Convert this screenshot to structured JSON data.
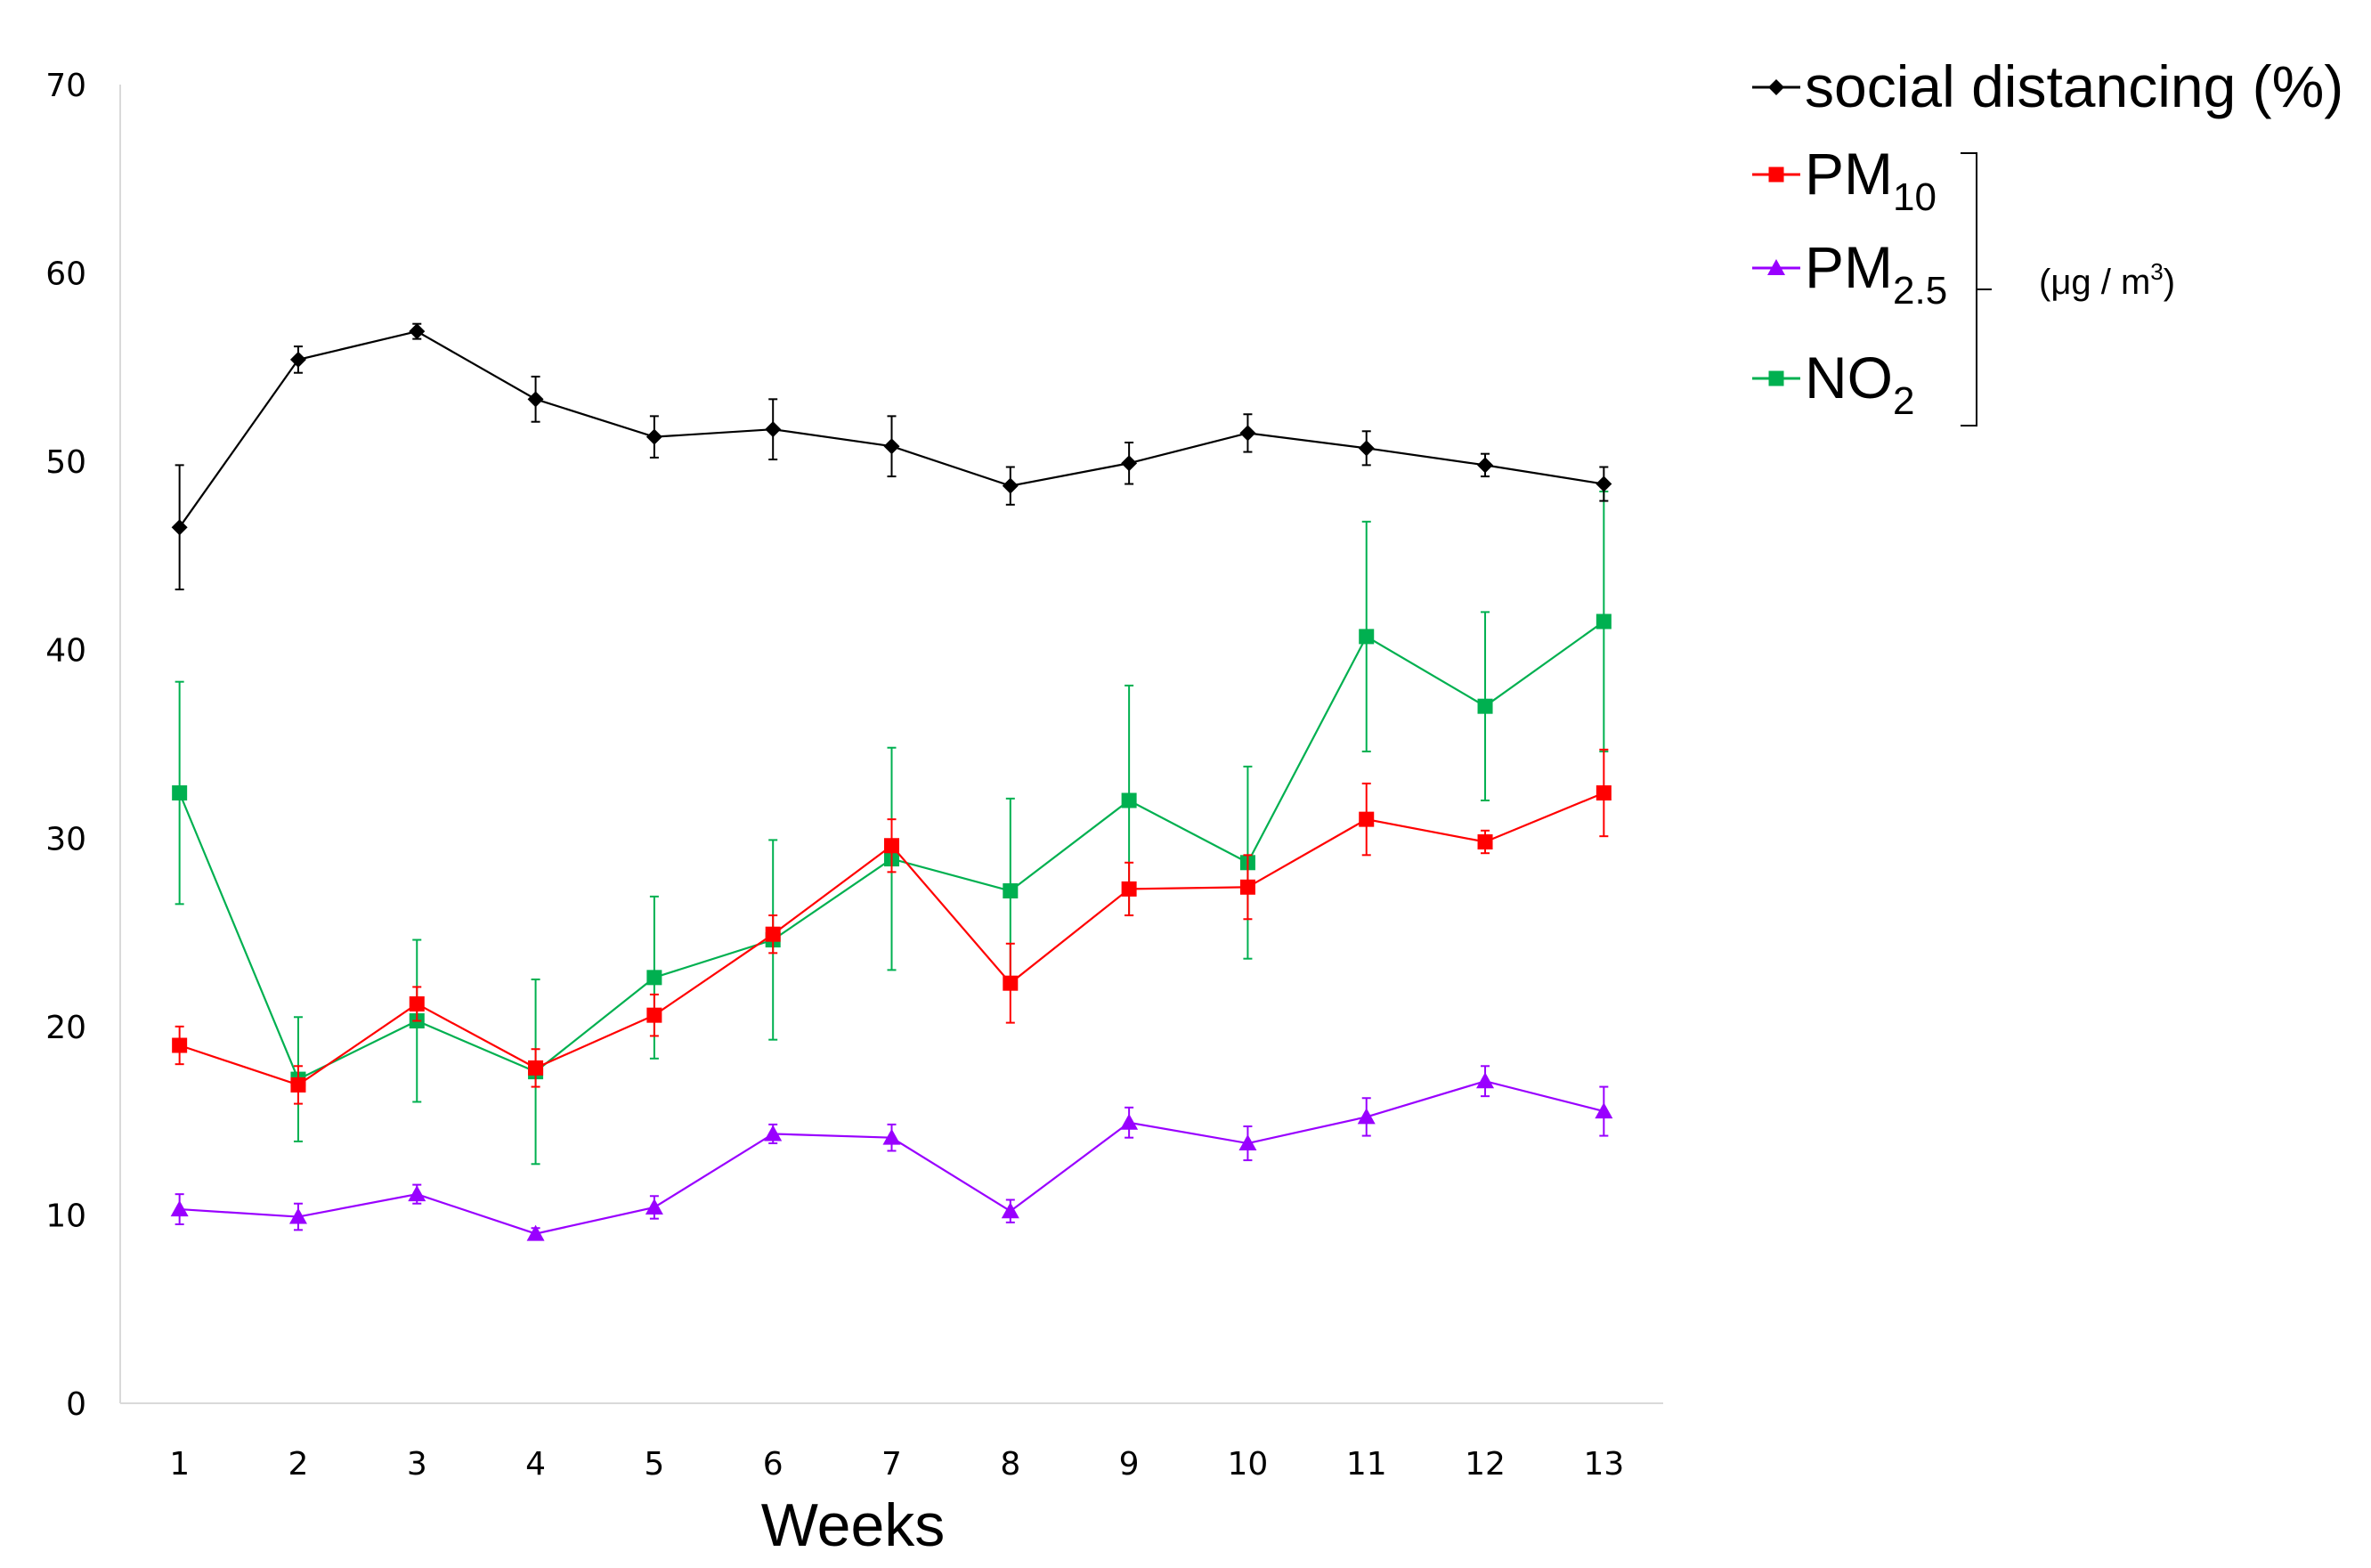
{
  "chart_data": {
    "type": "line",
    "title": "",
    "xlabel": "Weeks",
    "ylabel": "",
    "ylim": [
      0,
      70
    ],
    "yticks": [
      0,
      10,
      20,
      30,
      40,
      50,
      60,
      70
    ],
    "x": [
      1,
      2,
      3,
      4,
      5,
      6,
      7,
      8,
      9,
      10,
      11,
      12,
      13
    ],
    "xtick_labels": [
      "1",
      "2",
      "3",
      "4",
      "5",
      "6",
      "7",
      "8",
      "9",
      "10",
      "11",
      "12",
      "13"
    ],
    "grid": false,
    "legend_position": "top-right",
    "units_label": {
      "prefix": "(μg / m",
      "sup": "3",
      "suffix": ")"
    },
    "series": [
      {
        "key": "social",
        "label": "social distancing (%)",
        "label_main": "social distancing (%)",
        "label_sub": "",
        "color": "#000000",
        "marker": "diamond",
        "values": [
          46.5,
          55.4,
          56.9,
          53.3,
          51.3,
          51.7,
          50.8,
          48.7,
          49.9,
          51.5,
          50.7,
          49.8,
          48.8
        ],
        "errors": [
          3.3,
          0.7,
          0.4,
          1.2,
          1.1,
          1.6,
          1.6,
          1.0,
          1.1,
          1.0,
          0.9,
          0.6,
          0.9
        ]
      },
      {
        "key": "pm10",
        "label": "PM10",
        "label_main": "PM",
        "label_sub": "10",
        "color": "#ff0000",
        "marker": "square",
        "values": [
          19.0,
          16.9,
          21.2,
          17.8,
          20.6,
          24.9,
          29.6,
          22.3,
          27.3,
          27.4,
          31.0,
          29.8,
          32.4
        ],
        "errors": [
          1.0,
          1.0,
          0.9,
          1.0,
          1.1,
          1.0,
          1.4,
          2.1,
          1.4,
          1.7,
          1.9,
          0.6,
          2.3
        ]
      },
      {
        "key": "pm25",
        "label": "PM2.5",
        "label_main": "PM",
        "label_sub": "2.5",
        "color": "#9900ff",
        "marker": "triangle",
        "values": [
          10.3,
          9.9,
          11.1,
          9.0,
          10.4,
          14.3,
          14.1,
          10.2,
          14.9,
          13.8,
          15.2,
          17.1,
          15.5
        ],
        "errors": [
          0.8,
          0.7,
          0.5,
          0.3,
          0.6,
          0.5,
          0.7,
          0.6,
          0.8,
          0.9,
          1.0,
          0.8,
          1.3
        ]
      },
      {
        "key": "no2",
        "label": "NO2",
        "label_main": "NO",
        "label_sub": "2",
        "color": "#00b050",
        "marker": "square",
        "values": [
          32.4,
          17.2,
          20.3,
          17.6,
          22.6,
          24.6,
          28.9,
          27.2,
          32.0,
          28.7,
          40.7,
          37.0,
          41.5
        ],
        "errors": [
          5.9,
          3.3,
          4.3,
          4.9,
          4.3,
          5.3,
          5.9,
          4.9,
          6.1,
          5.1,
          6.1,
          5.0,
          6.9
        ]
      }
    ]
  }
}
